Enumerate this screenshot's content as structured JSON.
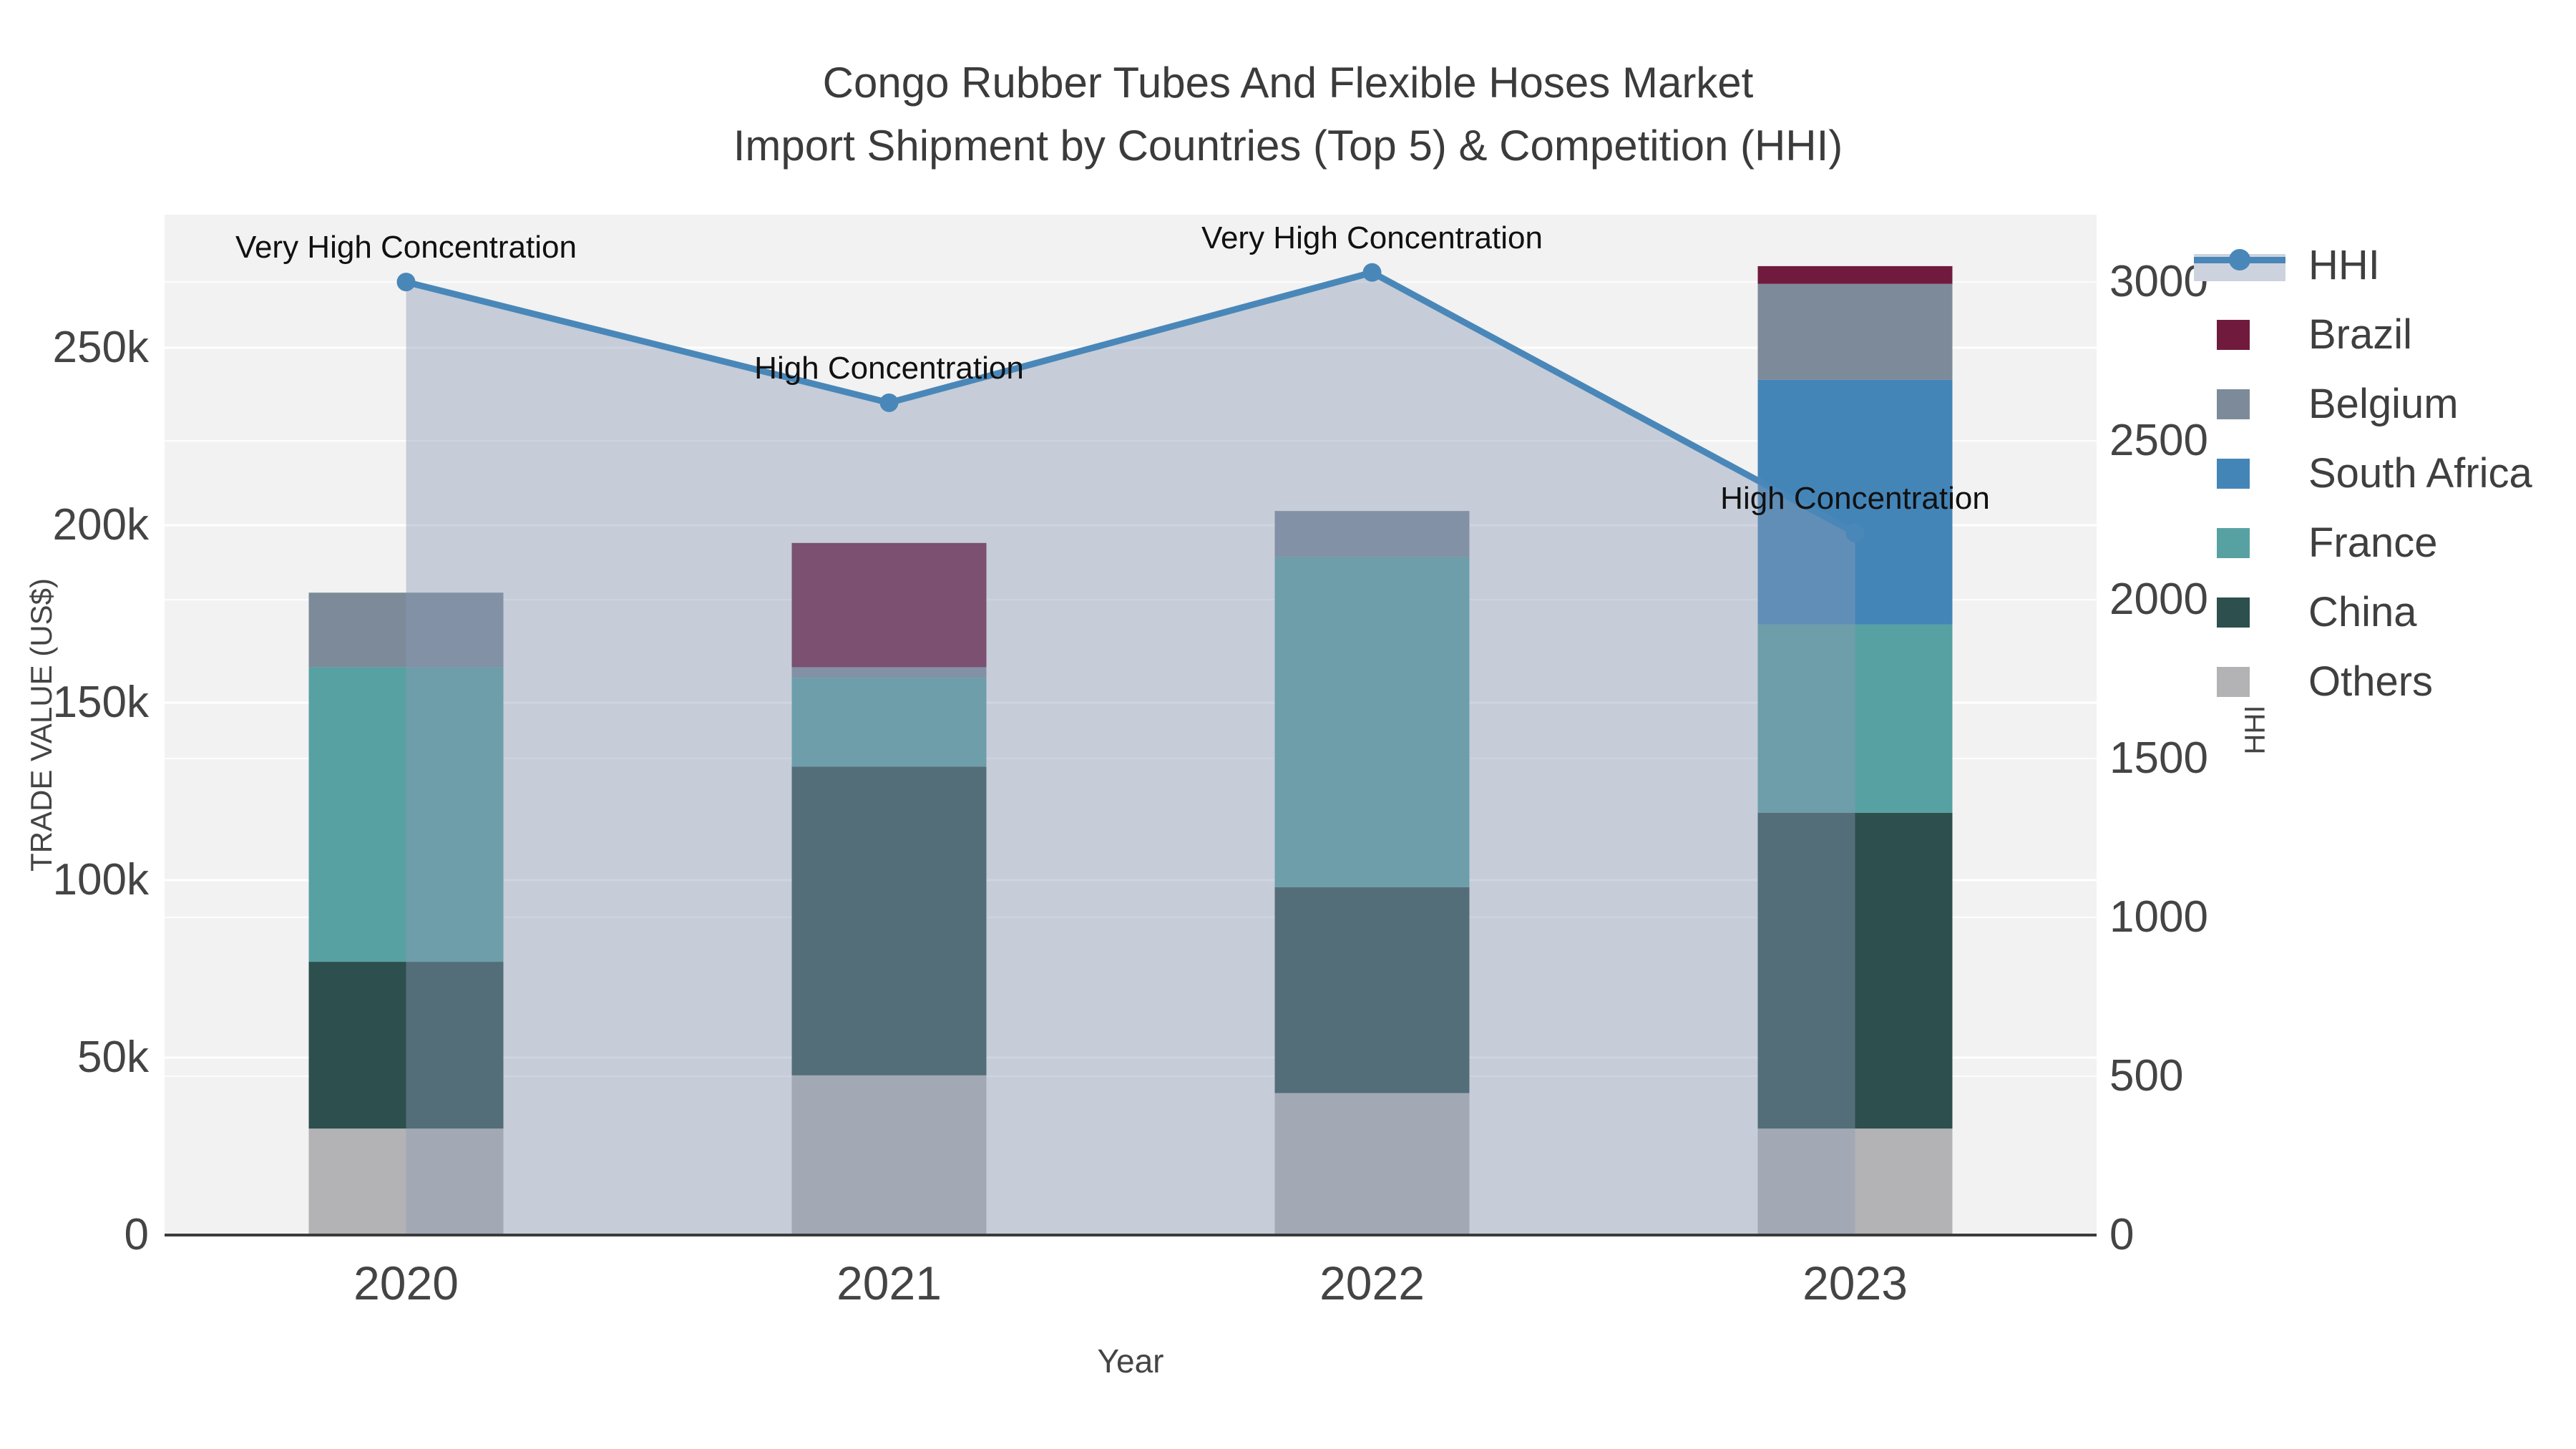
{
  "title": {
    "line1": "Congo Rubber Tubes And Flexible Hoses Market",
    "line2": "Import Shipment by Countries (Top 5) & Competition (HHI)"
  },
  "colors": {
    "plot_bg": "#f2f2f2",
    "grid": "#ffffff",
    "axis_line": "#3b3b3b",
    "text": "#444444",
    "annotation_text": "#111111",
    "hhi_line": "#4a87b9",
    "hhi_area_fill": "rgba(139,155,180,0.42)",
    "legend_band": "#ccd3de",
    "brazil": "#701b3e",
    "belgium": "#7d8a99",
    "south_africa": "#4485b8",
    "france": "#58a1a3",
    "china": "#2d4f4e",
    "others": "#b3b3b5"
  },
  "chart_data": {
    "type": "combo: stacked-bar (left axis) + line-with-area (right axis)",
    "title": "Congo Rubber Tubes And Flexible Hoses Market — Import Shipment by Countries (Top 5) & Competition (HHI)",
    "categories": [
      "2020",
      "2021",
      "2022",
      "2023"
    ],
    "xlabel": "Year",
    "left_axis": {
      "label": "TRADE VALUE (US$)",
      "range": [
        0,
        287500
      ],
      "ticks": [
        {
          "value": 0,
          "label": "0"
        },
        {
          "value": 50000,
          "label": "50k"
        },
        {
          "value": 100000,
          "label": "100k"
        },
        {
          "value": 150000,
          "label": "150k"
        },
        {
          "value": 200000,
          "label": "200k"
        },
        {
          "value": 250000,
          "label": "250k"
        }
      ]
    },
    "right_axis": {
      "label": "HHI",
      "range": [
        0,
        3212
      ],
      "ticks": [
        {
          "value": 0,
          "label": "0"
        },
        {
          "value": 500,
          "label": "500"
        },
        {
          "value": 1000,
          "label": "1000"
        },
        {
          "value": 1500,
          "label": "1500"
        },
        {
          "value": 2000,
          "label": "2000"
        },
        {
          "value": 2500,
          "label": "2500"
        },
        {
          "value": 3000,
          "label": "3000"
        }
      ]
    },
    "series": [
      {
        "name": "Others",
        "color_key": "others",
        "values": [
          30000,
          45000,
          40000,
          30000
        ]
      },
      {
        "name": "China",
        "color_key": "china",
        "values": [
          47000,
          87000,
          58000,
          89000
        ]
      },
      {
        "name": "France",
        "color_key": "france",
        "values": [
          83000,
          25000,
          93000,
          53000
        ]
      },
      {
        "name": "South Africa",
        "color_key": "south_africa",
        "values": [
          0,
          0,
          0,
          69000
        ]
      },
      {
        "name": "Belgium",
        "color_key": "belgium",
        "values": [
          21000,
          3000,
          13000,
          27000
        ]
      },
      {
        "name": "Brazil",
        "color_key": "brazil",
        "values": [
          0,
          35000,
          0,
          5000
        ]
      }
    ],
    "hhi_series": {
      "name": "HHI",
      "values": [
        3000,
        2620,
        3030,
        2210
      ]
    },
    "annotations": [
      {
        "x_index": 0,
        "text": "Very High Concentration"
      },
      {
        "x_index": 1,
        "text": "High Concentration"
      },
      {
        "x_index": 2,
        "text": "Very High Concentration"
      },
      {
        "x_index": 3,
        "text": "High Concentration"
      }
    ],
    "legend": {
      "position": "right",
      "items": [
        {
          "label": "HHI",
          "type": "line-marker-band"
        },
        {
          "label": "Brazil",
          "type": "square",
          "color_key": "brazil"
        },
        {
          "label": "Belgium",
          "type": "square",
          "color_key": "belgium"
        },
        {
          "label": "South Africa",
          "type": "square",
          "color_key": "south_africa"
        },
        {
          "label": "France",
          "type": "square",
          "color_key": "france"
        },
        {
          "label": "China",
          "type": "square",
          "color_key": "china"
        },
        {
          "label": "Others",
          "type": "square",
          "color_key": "others"
        }
      ]
    },
    "grid": "both axes, white gridlines on light gray plot background",
    "totals_by_year": [
      181000,
      195000,
      204000,
      273000
    ]
  }
}
